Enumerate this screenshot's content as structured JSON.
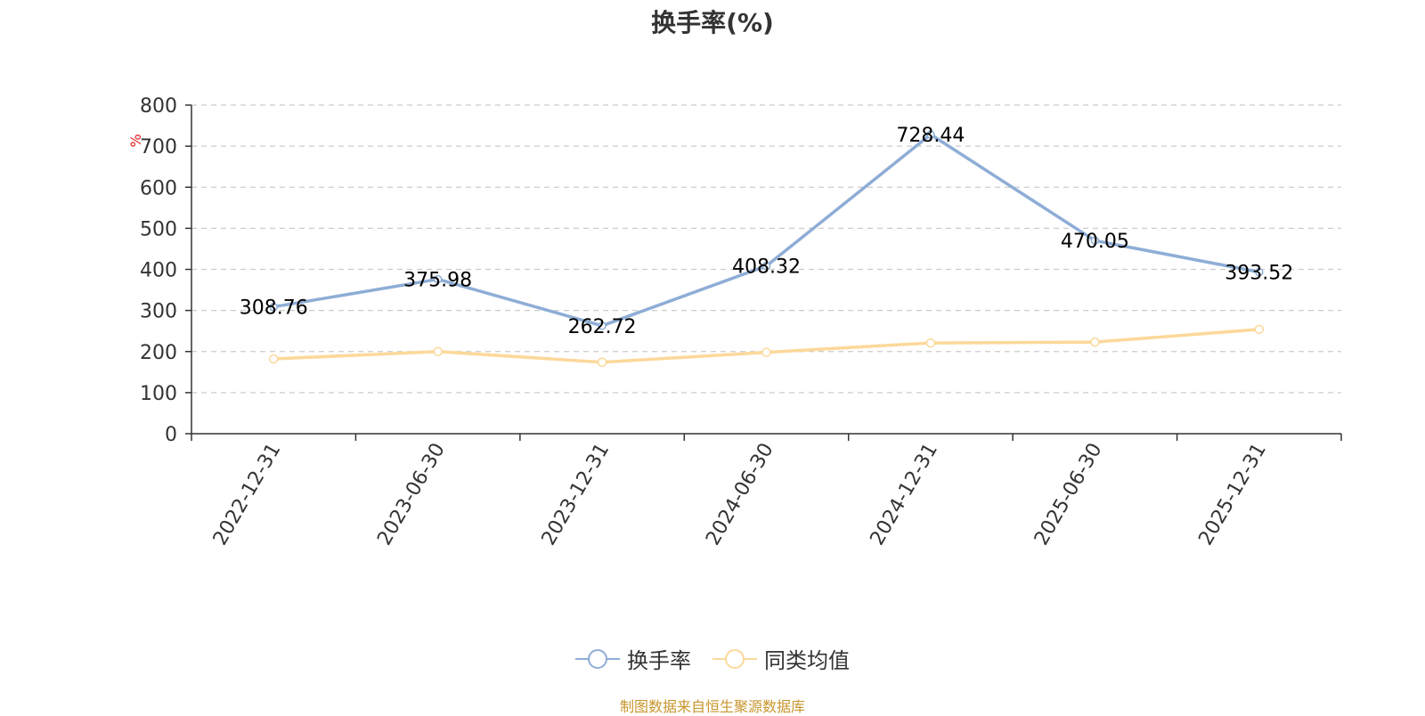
{
  "title": "换手率(%)",
  "unit_label": "%",
  "source_note": "制图数据来自恒生聚源数据库",
  "colors": {
    "turnover": "#8eadd6",
    "peer_avg": "#fcd89a",
    "unit": "#e02020",
    "source": "#c8962c",
    "grid": "#cccccc",
    "axis": "#333333"
  },
  "chart_data": {
    "type": "line",
    "title": "换手率(%)",
    "ylabel": "%",
    "xlabel": "",
    "ylim": [
      0,
      800
    ],
    "yticks": [
      0,
      100,
      200,
      300,
      400,
      500,
      600,
      700,
      800
    ],
    "grid": true,
    "legend_position": "bottom-center",
    "categories": [
      "2022-12-31",
      "2023-06-30",
      "2023-12-31",
      "2024-06-30",
      "2024-12-31",
      "2025-06-30",
      "2025-12-31"
    ],
    "series": [
      {
        "name": "换手率",
        "values": [
          308.76,
          375.98,
          262.72,
          408.32,
          728.44,
          470.05,
          393.52
        ],
        "labels": [
          "308.76",
          "375.98",
          "262.72",
          "408.32",
          "728.44",
          "470.05",
          "393.52"
        ],
        "color": "#8eadd6"
      },
      {
        "name": "同类均值",
        "values": [
          182,
          200,
          174,
          198,
          221,
          223,
          254
        ],
        "color": "#fcd89a"
      }
    ]
  }
}
